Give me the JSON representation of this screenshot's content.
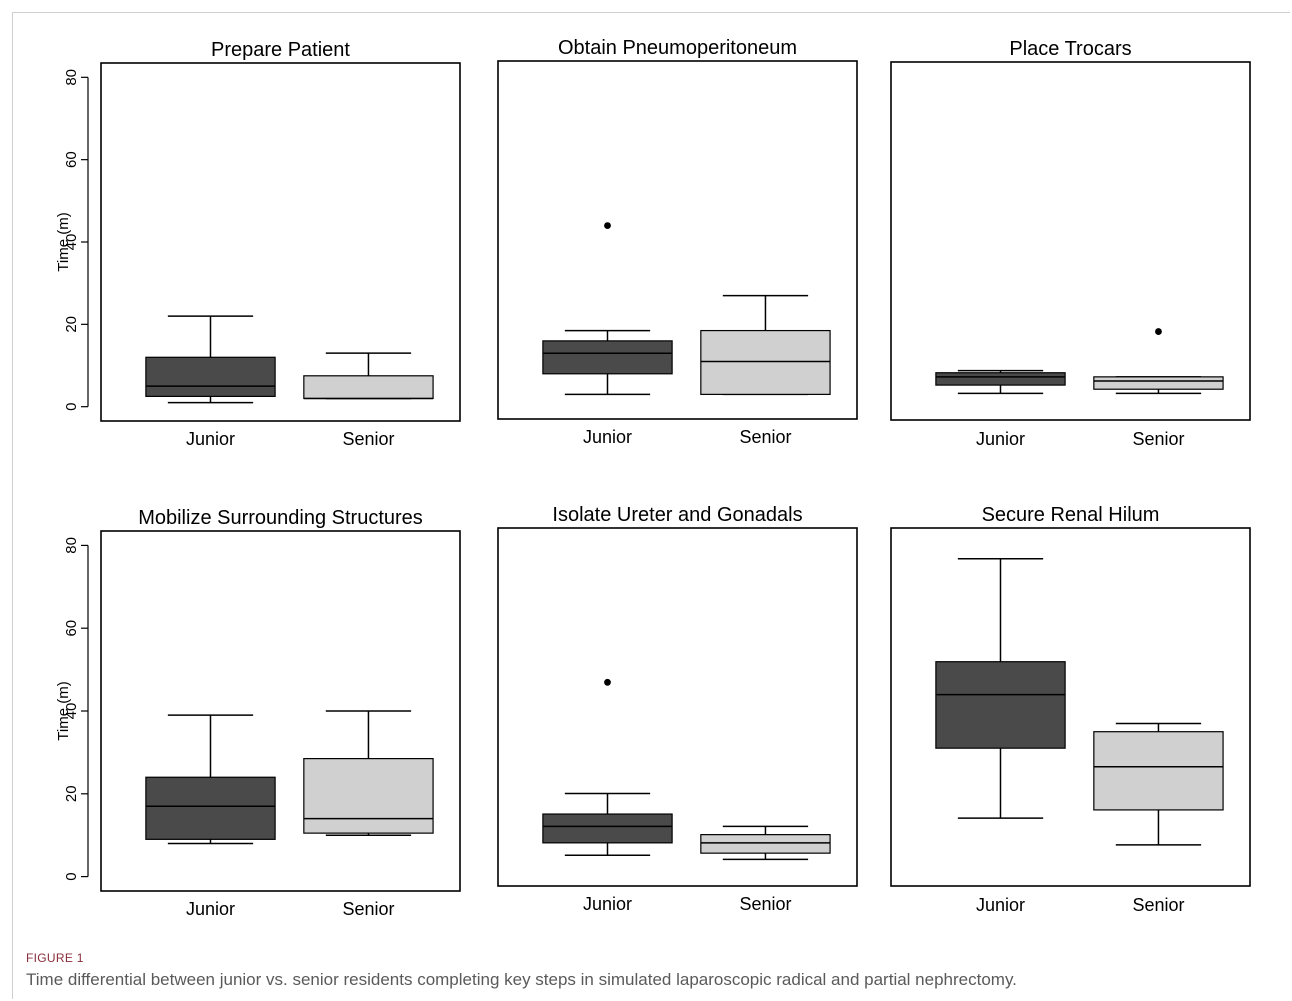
{
  "figure": {
    "label": "FIGURE 1",
    "caption": "Time differential between junior vs. senior residents completing key steps in simulated laparoscopic radical and partial nephrectomy."
  },
  "colors": {
    "junior": "#4a4a4a",
    "senior": "#d0d0d0",
    "axis": "#000000"
  },
  "chart_data": [
    {
      "type": "box",
      "title": "Prepare Patient",
      "ylabel": "Time (m)",
      "ylim": [
        0,
        80
      ],
      "yticks": [
        0,
        20,
        40,
        60,
        80
      ],
      "categories": [
        "Junior",
        "Senior"
      ],
      "boxes": [
        {
          "name": "Junior",
          "min": 1,
          "q1": 2.5,
          "median": 5,
          "q3": 12,
          "max": 22,
          "outliers": []
        },
        {
          "name": "Senior",
          "min": 2,
          "q1": 2,
          "median": 2,
          "q3": 7.5,
          "max": 13,
          "outliers": []
        }
      ]
    },
    {
      "type": "box",
      "title": "Obtain  Pneumoperitoneum",
      "ylabel": "",
      "ylim": [
        0,
        80
      ],
      "yticks": [],
      "categories": [
        "Junior",
        "Senior"
      ],
      "boxes": [
        {
          "name": "Junior",
          "min": 2.5,
          "q1": 7.5,
          "median": 12.5,
          "q3": 15.5,
          "max": 18,
          "outliers": [
            43.5
          ]
        },
        {
          "name": "Senior",
          "min": 2.5,
          "q1": 2.5,
          "median": 10.5,
          "q3": 18,
          "max": 26.5,
          "outliers": []
        }
      ]
    },
    {
      "type": "box",
      "title": "Place  Trocars",
      "ylabel": "",
      "ylim": [
        0,
        80
      ],
      "yticks": [],
      "categories": [
        "Junior",
        "Senior"
      ],
      "boxes": [
        {
          "name": "Junior",
          "min": 3,
          "q1": 5,
          "median": 7,
          "q3": 8,
          "max": 8.5,
          "outliers": []
        },
        {
          "name": "Senior",
          "min": 3,
          "q1": 4,
          "median": 6,
          "q3": 7,
          "max": 7,
          "outliers": [
            18
          ]
        }
      ]
    },
    {
      "type": "box",
      "title": "Mobilize  Surrounding  Structures",
      "ylabel": "Time (m)",
      "ylim": [
        0,
        80
      ],
      "yticks": [
        0,
        20,
        40,
        60,
        80
      ],
      "categories": [
        "Junior",
        "Senior"
      ],
      "boxes": [
        {
          "name": "Junior",
          "min": 8,
          "q1": 9,
          "median": 17,
          "q3": 24,
          "max": 39,
          "outliers": []
        },
        {
          "name": "Senior",
          "min": 10,
          "q1": 10.5,
          "median": 14,
          "q3": 28.5,
          "max": 40,
          "outliers": []
        }
      ]
    },
    {
      "type": "box",
      "title": "Isolate  Ureter  and  Gonadals",
      "ylabel": "",
      "ylim": [
        0,
        80
      ],
      "yticks": [],
      "categories": [
        "Junior",
        "Senior"
      ],
      "boxes": [
        {
          "name": "Junior",
          "min": 4,
          "q1": 7,
          "median": 11,
          "q3": 14,
          "max": 19,
          "outliers": [
            46
          ]
        },
        {
          "name": "Senior",
          "min": 3,
          "q1": 4.5,
          "median": 7,
          "q3": 9,
          "max": 11,
          "outliers": []
        }
      ]
    },
    {
      "type": "box",
      "title": "Secure  Renal  Hilum",
      "ylabel": "",
      "ylim": [
        0,
        80
      ],
      "yticks": [],
      "categories": [
        "Junior",
        "Senior"
      ],
      "boxes": [
        {
          "name": "Junior",
          "min": 13,
          "q1": 30,
          "median": 43,
          "q3": 51,
          "max": 76,
          "outliers": []
        },
        {
          "name": "Senior",
          "min": 6.5,
          "q1": 15,
          "median": 25.5,
          "q3": 34,
          "max": 36,
          "outliers": []
        }
      ]
    }
  ]
}
